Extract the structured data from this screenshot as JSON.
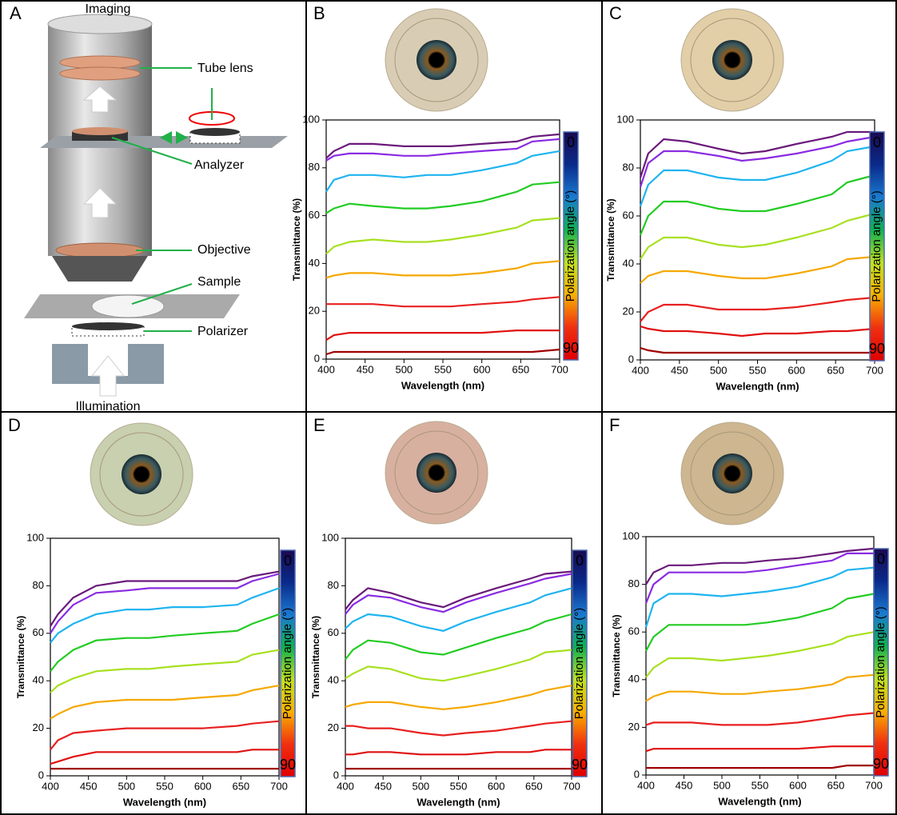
{
  "panel_a": {
    "panel": "A",
    "labels": [
      "Imaging",
      "Tube lens",
      "Analyzer",
      "Objective",
      "Sample",
      "Polarizer",
      "Illumination"
    ]
  },
  "chart_data": [
    {
      "type": "line",
      "panel": "B",
      "x_label": "Wavelength (nm)",
      "y_label": "Transmittance (%)",
      "x": [
        400,
        410,
        430,
        460,
        500,
        530,
        560,
        600,
        645,
        665,
        700
      ],
      "xlim": [
        400,
        700
      ],
      "ylim": [
        0,
        100
      ],
      "xticks": [
        400,
        450,
        500,
        550,
        600,
        650,
        700
      ],
      "yticks": [
        0,
        20,
        40,
        60,
        80,
        100
      ],
      "colorbar": {
        "label": "Polarization angle (°)",
        "lim": [
          0,
          90
        ],
        "ticks": [
          0,
          90
        ],
        "colors": [
          "#1a0a50",
          "#0a2a8a",
          "#1a7ad0",
          "#10b050",
          "#c0e020",
          "#f8b000",
          "#f03010",
          "#e00000"
        ]
      },
      "series": [
        {
          "color": "#6a1a7a",
          "values": [
            84,
            87,
            90,
            90,
            89,
            89,
            89,
            90,
            91,
            93,
            94
          ]
        },
        {
          "color": "#8a2be2",
          "values": [
            83,
            85,
            86,
            86,
            85,
            85,
            86,
            87,
            88,
            91,
            92
          ]
        },
        {
          "color": "#1fb4f0",
          "values": [
            70,
            75,
            77,
            77,
            76,
            77,
            77,
            79,
            82,
            85,
            87
          ]
        },
        {
          "color": "#22cc22",
          "values": [
            61,
            63,
            65,
            64,
            63,
            63,
            64,
            66,
            70,
            73,
            74
          ]
        },
        {
          "color": "#a8e020",
          "values": [
            44,
            47,
            49,
            50,
            49,
            49,
            50,
            52,
            55,
            58,
            59
          ]
        },
        {
          "color": "#f5a800",
          "values": [
            34,
            35,
            36,
            36,
            35,
            35,
            35,
            36,
            38,
            40,
            41
          ]
        },
        {
          "color": "#e82020",
          "values": [
            23,
            23,
            23,
            23,
            22,
            22,
            22,
            23,
            24,
            25,
            26
          ]
        },
        {
          "color": "#e01010",
          "values": [
            8,
            10,
            11,
            11,
            11,
            11,
            11,
            11,
            12,
            12,
            12
          ]
        },
        {
          "color": "#a00000",
          "values": [
            2,
            3,
            3,
            3,
            3,
            3,
            3,
            3,
            3,
            3,
            4
          ]
        }
      ]
    },
    {
      "type": "line",
      "panel": "C",
      "x_label": "Wavelength (nm)",
      "y_label": "Transmittance (%)",
      "x": [
        400,
        410,
        430,
        460,
        500,
        530,
        560,
        600,
        645,
        665,
        700
      ],
      "xlim": [
        400,
        700
      ],
      "ylim": [
        0,
        100
      ],
      "xticks": [
        400,
        450,
        500,
        550,
        600,
        650,
        700
      ],
      "yticks": [
        0,
        20,
        40,
        60,
        80,
        100
      ],
      "colorbar": {
        "label": "Polarization angle (°)",
        "lim": [
          0,
          90
        ],
        "ticks": [
          0,
          90
        ],
        "colors": [
          "#1a0a50",
          "#0a2a8a",
          "#1a7ad0",
          "#10b050",
          "#c0e020",
          "#f8b000",
          "#f03010",
          "#e00000"
        ]
      },
      "series": [
        {
          "color": "#6a1a7a",
          "values": [
            76,
            86,
            92,
            91,
            88,
            86,
            87,
            90,
            93,
            95,
            95
          ]
        },
        {
          "color": "#8a2be2",
          "values": [
            72,
            82,
            87,
            87,
            85,
            83,
            84,
            86,
            89,
            91,
            93
          ]
        },
        {
          "color": "#1fb4f0",
          "values": [
            64,
            73,
            79,
            79,
            76,
            75,
            75,
            78,
            83,
            87,
            89
          ]
        },
        {
          "color": "#22cc22",
          "values": [
            52,
            60,
            66,
            66,
            63,
            62,
            62,
            65,
            69,
            74,
            77
          ]
        },
        {
          "color": "#a8e020",
          "values": [
            42,
            47,
            51,
            51,
            48,
            47,
            48,
            51,
            55,
            58,
            61
          ]
        },
        {
          "color": "#f5a800",
          "values": [
            32,
            35,
            37,
            37,
            35,
            34,
            34,
            36,
            39,
            42,
            43
          ]
        },
        {
          "color": "#e82020",
          "values": [
            16,
            20,
            23,
            23,
            21,
            21,
            21,
            22,
            24,
            25,
            26
          ]
        },
        {
          "color": "#e01010",
          "values": [
            14,
            13,
            12,
            12,
            11,
            10,
            11,
            11,
            12,
            12,
            13
          ]
        },
        {
          "color": "#a00000",
          "values": [
            5,
            4,
            3,
            3,
            3,
            3,
            3,
            3,
            3,
            3,
            3
          ]
        }
      ]
    },
    {
      "type": "line",
      "panel": "D",
      "x_label": "Wavelength (nm)",
      "y_label": "Transmittance (%)",
      "x": [
        400,
        410,
        430,
        460,
        500,
        530,
        560,
        600,
        645,
        665,
        700
      ],
      "xlim": [
        400,
        700
      ],
      "ylim": [
        0,
        100
      ],
      "xticks": [
        400,
        450,
        500,
        550,
        600,
        650,
        700
      ],
      "yticks": [
        0,
        20,
        40,
        60,
        80,
        100
      ],
      "colorbar": {
        "label": "Polarization angle (°)",
        "lim": [
          0,
          90
        ],
        "ticks": [
          0,
          90
        ],
        "colors": [
          "#1a0a50",
          "#0a2a8a",
          "#1a7ad0",
          "#10b050",
          "#c0e020",
          "#f8b000",
          "#f03010",
          "#e00000"
        ]
      },
      "series": [
        {
          "color": "#6a1a7a",
          "values": [
            63,
            68,
            75,
            80,
            82,
            82,
            82,
            82,
            82,
            84,
            86
          ]
        },
        {
          "color": "#8a2be2",
          "values": [
            60,
            65,
            72,
            77,
            78,
            79,
            79,
            79,
            79,
            82,
            85
          ]
        },
        {
          "color": "#1fb4f0",
          "values": [
            56,
            60,
            64,
            68,
            70,
            70,
            71,
            71,
            72,
            75,
            79
          ]
        },
        {
          "color": "#22cc22",
          "values": [
            44,
            48,
            53,
            57,
            58,
            58,
            59,
            60,
            61,
            64,
            68
          ]
        },
        {
          "color": "#a8e020",
          "values": [
            35,
            38,
            41,
            44,
            45,
            45,
            46,
            47,
            48,
            51,
            53
          ]
        },
        {
          "color": "#f5a800",
          "values": [
            24,
            26,
            29,
            31,
            32,
            32,
            32,
            33,
            34,
            36,
            38
          ]
        },
        {
          "color": "#e82020",
          "values": [
            11,
            15,
            18,
            19,
            20,
            20,
            20,
            20,
            21,
            22,
            23
          ]
        },
        {
          "color": "#e01010",
          "values": [
            5,
            6,
            8,
            10,
            10,
            10,
            10,
            10,
            10,
            11,
            11
          ]
        },
        {
          "color": "#a00000",
          "values": [
            3,
            3,
            3,
            3,
            3,
            3,
            3,
            3,
            3,
            3,
            3
          ]
        }
      ]
    },
    {
      "type": "line",
      "panel": "E",
      "x_label": "Wavelength (nm)",
      "y_label": "Transmittance (%)",
      "x": [
        400,
        410,
        430,
        460,
        500,
        530,
        560,
        600,
        645,
        665,
        700
      ],
      "xlim": [
        400,
        700
      ],
      "ylim": [
        0,
        100
      ],
      "xticks": [
        400,
        450,
        500,
        550,
        600,
        650,
        700
      ],
      "yticks": [
        0,
        20,
        40,
        60,
        80,
        100
      ],
      "colorbar": {
        "label": "Polarization angle (°)",
        "lim": [
          0,
          90
        ],
        "ticks": [
          0,
          90
        ],
        "colors": [
          "#1a0a50",
          "#0a2a8a",
          "#1a7ad0",
          "#10b050",
          "#c0e020",
          "#f8b000",
          "#f03010",
          "#e00000"
        ]
      },
      "series": [
        {
          "color": "#6a1a7a",
          "values": [
            70,
            74,
            79,
            77,
            73,
            71,
            75,
            79,
            83,
            85,
            86
          ]
        },
        {
          "color": "#8a2be2",
          "values": [
            68,
            72,
            76,
            75,
            71,
            69,
            73,
            77,
            81,
            83,
            85
          ]
        },
        {
          "color": "#1fb4f0",
          "values": [
            62,
            65,
            68,
            67,
            63,
            61,
            65,
            69,
            73,
            76,
            79
          ]
        },
        {
          "color": "#22cc22",
          "values": [
            49,
            53,
            57,
            56,
            52,
            51,
            54,
            58,
            62,
            65,
            68
          ]
        },
        {
          "color": "#a8e020",
          "values": [
            41,
            43,
            46,
            45,
            41,
            40,
            42,
            45,
            49,
            52,
            53
          ]
        },
        {
          "color": "#f5a800",
          "values": [
            29,
            30,
            31,
            31,
            29,
            28,
            29,
            31,
            34,
            36,
            38
          ]
        },
        {
          "color": "#e82020",
          "values": [
            21,
            21,
            20,
            20,
            18,
            17,
            18,
            19,
            21,
            22,
            23
          ]
        },
        {
          "color": "#e01010",
          "values": [
            9,
            9,
            10,
            10,
            9,
            9,
            9,
            10,
            10,
            11,
            11
          ]
        },
        {
          "color": "#a00000",
          "values": [
            3,
            3,
            3,
            3,
            3,
            3,
            3,
            3,
            3,
            3,
            3
          ]
        }
      ]
    },
    {
      "type": "line",
      "panel": "F",
      "x_label": "Wavelength (nm)",
      "y_label": "Transmittance (%)",
      "x": [
        400,
        410,
        430,
        460,
        500,
        530,
        560,
        600,
        645,
        665,
        700
      ],
      "xlim": [
        400,
        700
      ],
      "ylim": [
        0,
        100
      ],
      "xticks": [
        400,
        450,
        500,
        550,
        600,
        650,
        700
      ],
      "yticks": [
        0,
        20,
        40,
        60,
        80,
        100
      ],
      "colorbar": {
        "label": "Polarization angle (°)",
        "lim": [
          0,
          90
        ],
        "ticks": [
          0,
          90
        ],
        "colors": [
          "#1a0a50",
          "#0a2a8a",
          "#1a7ad0",
          "#10b050",
          "#c0e020",
          "#f8b000",
          "#f03010",
          "#e00000"
        ]
      },
      "series": [
        {
          "color": "#6a1a7a",
          "values": [
            80,
            85,
            88,
            88,
            89,
            89,
            90,
            91,
            93,
            94,
            95
          ]
        },
        {
          "color": "#8a2be2",
          "values": [
            72,
            80,
            85,
            85,
            85,
            85,
            86,
            88,
            90,
            93,
            93
          ]
        },
        {
          "color": "#1fb4f0",
          "values": [
            62,
            72,
            76,
            76,
            75,
            76,
            77,
            79,
            83,
            86,
            87
          ]
        },
        {
          "color": "#22cc22",
          "values": [
            52,
            58,
            63,
            63,
            63,
            63,
            64,
            66,
            70,
            74,
            76
          ]
        },
        {
          "color": "#a8e020",
          "values": [
            41,
            45,
            49,
            49,
            48,
            49,
            50,
            52,
            55,
            58,
            60
          ]
        },
        {
          "color": "#f5a800",
          "values": [
            31,
            33,
            35,
            35,
            34,
            34,
            35,
            36,
            38,
            41,
            42
          ]
        },
        {
          "color": "#e82020",
          "values": [
            21,
            22,
            22,
            22,
            21,
            21,
            21,
            22,
            24,
            25,
            26
          ]
        },
        {
          "color": "#e01010",
          "values": [
            10,
            11,
            11,
            11,
            11,
            11,
            11,
            11,
            12,
            12,
            12
          ]
        },
        {
          "color": "#a00000",
          "values": [
            3,
            3,
            3,
            3,
            3,
            3,
            3,
            3,
            3,
            4,
            4
          ]
        }
      ]
    }
  ]
}
